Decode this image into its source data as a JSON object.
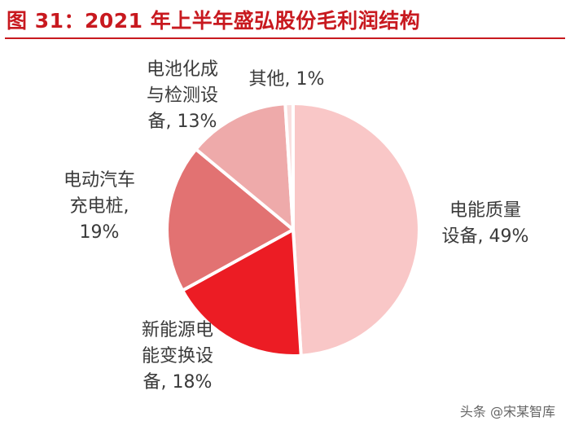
{
  "chart_data": {
    "type": "pie",
    "title": "图 31：2021 年上半年盛弘股份毛利润结构",
    "slices": [
      {
        "label_lines": [
          "电能质量",
          "设备, 49%"
        ],
        "value": 49,
        "color": "#f9c7c7"
      },
      {
        "label_lines": [
          "新能源电",
          "能变换设",
          "备, 18%"
        ],
        "value": 18,
        "color": "#ec1c24"
      },
      {
        "label_lines": [
          "电动汽车",
          "充电桩,",
          "19%"
        ],
        "value": 19,
        "color": "#e27272"
      },
      {
        "label_lines": [
          "电池化成",
          "与检测设",
          "备, 13%"
        ],
        "value": 13,
        "color": "#eeaaaa"
      },
      {
        "label_lines": [
          "其他, 1%"
        ],
        "value": 1,
        "color": "#f9dede"
      }
    ]
  },
  "watermark": "头条 @宋某智库"
}
